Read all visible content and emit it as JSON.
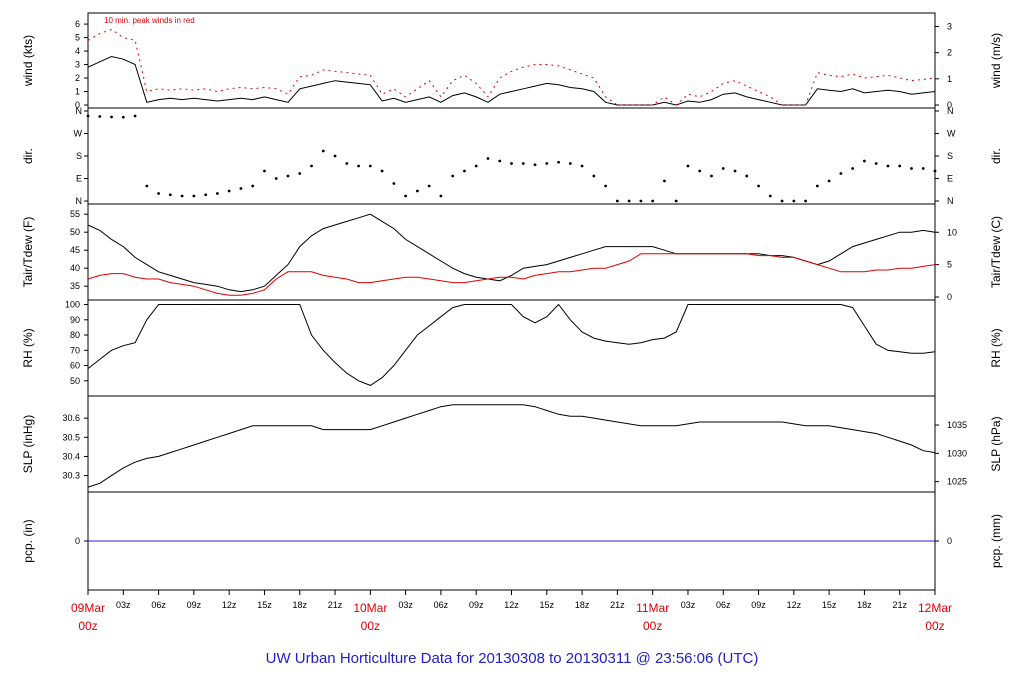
{
  "title": "UW Urban Horticulture Data for 20130308  to  20130311 @ 23:56:06  (UTC)",
  "colors": {
    "main": "#000000",
    "secondary": "#e00000",
    "precip": "#2020c8",
    "title": "#2020c8"
  },
  "chart_data": [
    {
      "type": "line",
      "name": "wind",
      "ylabel": "wind (kts)",
      "ylabel_right": "wind (m/s)",
      "ylim": [
        0,
        6.6
      ],
      "yticks": [
        "0",
        "1",
        "2",
        "3",
        "4",
        "5",
        "6"
      ],
      "right_ylim": [
        0,
        3.4
      ],
      "right_yticks": [
        "0",
        "1",
        "2",
        "3"
      ],
      "annotation": "10 min. peak winds in red",
      "x": [
        0,
        1,
        2,
        3,
        4,
        5,
        6,
        7,
        8,
        9,
        10,
        11,
        12,
        13,
        14,
        15,
        16,
        17,
        18,
        19,
        20,
        21,
        22,
        23,
        24,
        25,
        26,
        27,
        28,
        29,
        30,
        31,
        32,
        33,
        34,
        35,
        36,
        37,
        38,
        39,
        40,
        41,
        42,
        43,
        44,
        45,
        46,
        47,
        48,
        49,
        50,
        51,
        52,
        53,
        54,
        55,
        56,
        57,
        58,
        59,
        60,
        61,
        62,
        63,
        64,
        65,
        66,
        67,
        68,
        69,
        70,
        71,
        72
      ],
      "series": [
        {
          "values": [
            2.8,
            3.2,
            3.6,
            3.4,
            3.0,
            0.2,
            0.4,
            0.5,
            0.4,
            0.5,
            0.4,
            0.3,
            0.4,
            0.5,
            0.4,
            0.6,
            0.4,
            0.2,
            1.2,
            1.4,
            1.6,
            1.8,
            1.7,
            1.6,
            1.5,
            0.3,
            0.5,
            0.2,
            0.4,
            0.6,
            0.2,
            0.7,
            0.9,
            0.6,
            0.2,
            0.8,
            1.0,
            1.2,
            1.4,
            1.6,
            1.5,
            1.3,
            1.2,
            1.0,
            0.2,
            0,
            0,
            0,
            0,
            0.2,
            0,
            0.3,
            0.2,
            0.4,
            0.8,
            0.9,
            0.6,
            0.4,
            0.2,
            0,
            0,
            0,
            1.2,
            1.1,
            1.0,
            1.2,
            0.9,
            1.0,
            1.1,
            1.0,
            0.8,
            0.9,
            1.0
          ]
        },
        {
          "values": [
            4.8,
            5.3,
            5.6,
            5.0,
            4.8,
            1.0,
            1.2,
            1.1,
            1.2,
            1.1,
            1.2,
            1.0,
            1.2,
            1.3,
            1.2,
            1.3,
            1.2,
            0.8,
            2.1,
            2.2,
            2.6,
            2.5,
            2.4,
            2.3,
            2.2,
            0.8,
            1.2,
            0.6,
            1.2,
            1.8,
            0.6,
            1.8,
            2.2,
            1.6,
            0.6,
            2.0,
            2.5,
            2.8,
            3.0,
            3.0,
            2.9,
            2.6,
            2.3,
            2.0,
            0.6,
            0,
            0,
            0,
            0,
            0.6,
            0,
            0.8,
            0.6,
            1.0,
            1.6,
            1.8,
            1.4,
            1.0,
            0.6,
            0,
            0,
            0,
            2.4,
            2.2,
            2.1,
            2.3,
            2.0,
            2.1,
            2.2,
            2.0,
            1.8,
            1.9,
            2.0
          ]
        }
      ]
    },
    {
      "type": "scatter",
      "name": "dir",
      "ylabel": "dir.",
      "ylabel_right": "dir.",
      "ylim": [
        0,
        360
      ],
      "yticks": [
        "N",
        "E",
        "S",
        "W",
        "N"
      ],
      "x": [
        0,
        1,
        2,
        3,
        4,
        5,
        6,
        7,
        8,
        9,
        10,
        11,
        12,
        13,
        14,
        15,
        16,
        17,
        18,
        19,
        20,
        21,
        22,
        23,
        24,
        25,
        26,
        27,
        28,
        29,
        30,
        31,
        32,
        33,
        34,
        35,
        36,
        37,
        38,
        39,
        40,
        41,
        42,
        43,
        44,
        45,
        46,
        47,
        48,
        49,
        50,
        51,
        52,
        53,
        54,
        55,
        56,
        57,
        58,
        59,
        60,
        61,
        62,
        63,
        64,
        65,
        66,
        67,
        68,
        69,
        70,
        71,
        72
      ],
      "values": [
        340,
        338,
        336,
        335,
        340,
        60,
        30,
        25,
        20,
        20,
        25,
        30,
        40,
        50,
        60,
        120,
        90,
        100,
        110,
        140,
        200,
        180,
        150,
        140,
        140,
        120,
        70,
        20,
        40,
        60,
        20,
        100,
        120,
        140,
        170,
        160,
        150,
        150,
        145,
        150,
        155,
        150,
        140,
        100,
        60,
        0,
        0,
        0,
        0,
        80,
        0,
        140,
        120,
        100,
        130,
        120,
        100,
        60,
        20,
        0,
        0,
        0,
        60,
        80,
        110,
        130,
        160,
        150,
        140,
        140,
        130,
        130,
        120
      ]
    },
    {
      "type": "line",
      "name": "temperature",
      "ylabel": "Tair/Tdew (F)",
      "ylabel_right": "Tair/Tdew (C)",
      "ylim": [
        32,
        57
      ],
      "yticks": [
        "35",
        "40",
        "45",
        "50",
        "55"
      ],
      "right_ylim": [
        0,
        13.9
      ],
      "right_yticks": [
        "0",
        "5",
        "10"
      ],
      "x": [
        0,
        1,
        2,
        3,
        4,
        5,
        6,
        7,
        8,
        9,
        10,
        11,
        12,
        13,
        14,
        15,
        16,
        17,
        18,
        19,
        20,
        21,
        22,
        23,
        24,
        25,
        26,
        27,
        28,
        29,
        30,
        31,
        32,
        33,
        34,
        35,
        36,
        37,
        38,
        39,
        40,
        41,
        42,
        43,
        44,
        45,
        46,
        47,
        48,
        49,
        50,
        51,
        52,
        53,
        54,
        55,
        56,
        57,
        58,
        59,
        60,
        61,
        62,
        63,
        64,
        65,
        66,
        67,
        68,
        69,
        70,
        71,
        72
      ],
      "series": [
        {
          "values": [
            52,
            50.5,
            48,
            46,
            43,
            41,
            39,
            38,
            37,
            36,
            35.5,
            35,
            34,
            33.5,
            34,
            35,
            38,
            41,
            46,
            49,
            51,
            52,
            53,
            54,
            55,
            53,
            51,
            48,
            46,
            44,
            42,
            40,
            38.5,
            37.5,
            37,
            36.5,
            38,
            40,
            40.5,
            41,
            42,
            43,
            44,
            45,
            46,
            46,
            46,
            46,
            46,
            45,
            44,
            44,
            44,
            44,
            44,
            44,
            44,
            44,
            43.5,
            43.5,
            43,
            42,
            41,
            42,
            44,
            46,
            47,
            48,
            49,
            50,
            50,
            50.5,
            50
          ]
        },
        {
          "values": [
            37,
            38,
            38.5,
            38.5,
            37.5,
            37,
            37,
            36,
            35.5,
            35,
            34,
            33,
            32.5,
            32.5,
            33,
            34,
            37,
            39,
            39,
            39,
            38,
            37.5,
            37,
            36,
            36,
            36.5,
            37,
            37.5,
            37.5,
            37,
            36.5,
            36,
            36,
            36.5,
            37,
            37.5,
            37.5,
            37,
            38,
            38.5,
            39,
            39,
            39.5,
            40,
            40,
            41,
            42,
            44,
            44,
            44,
            44,
            44,
            44,
            44,
            44,
            44,
            44,
            43.5,
            43.5,
            43,
            43,
            42,
            41,
            40,
            39,
            39,
            39,
            39.5,
            39.5,
            40,
            40,
            40.5,
            41
          ]
        }
      ]
    },
    {
      "type": "line",
      "name": "rh",
      "ylabel": "RH (%)",
      "ylabel_right": "RH (%)",
      "ylim": [
        42,
        101
      ],
      "yticks": [
        "50",
        "60",
        "70",
        "80",
        "90",
        "100"
      ],
      "x": [
        0,
        1,
        2,
        3,
        4,
        5,
        6,
        7,
        8,
        9,
        10,
        11,
        12,
        13,
        14,
        15,
        16,
        17,
        18,
        19,
        20,
        21,
        22,
        23,
        24,
        25,
        26,
        27,
        28,
        29,
        30,
        31,
        32,
        33,
        34,
        35,
        36,
        37,
        38,
        39,
        40,
        41,
        42,
        43,
        44,
        45,
        46,
        47,
        48,
        49,
        50,
        51,
        52,
        53,
        54,
        55,
        56,
        57,
        58,
        59,
        60,
        61,
        62,
        63,
        64,
        65,
        66,
        67,
        68,
        69,
        70,
        71,
        72
      ],
      "values": [
        58,
        64,
        70,
        73,
        75,
        90,
        100,
        100,
        100,
        100,
        100,
        100,
        100,
        100,
        100,
        100,
        100,
        100,
        100,
        80,
        70,
        62,
        55,
        50,
        47,
        52,
        60,
        70,
        80,
        86,
        92,
        98,
        100,
        100,
        100,
        100,
        100,
        92,
        88,
        92,
        100,
        90,
        82,
        78,
        76,
        75,
        74,
        75,
        77,
        78,
        82,
        100,
        100,
        100,
        100,
        100,
        100,
        100,
        100,
        100,
        100,
        100,
        100,
        100,
        100,
        98,
        86,
        74,
        70,
        69,
        68,
        68,
        69
      ]
    },
    {
      "type": "line",
      "name": "slp",
      "ylabel": "SLP (inHg)",
      "ylabel_right": "SLP (hPa)",
      "ylim": [
        30.23,
        30.7
      ],
      "yticks": [
        "30.3",
        "30.4",
        "30.5",
        "30.6"
      ],
      "right_ylim": [
        1023.7,
        1039.6
      ],
      "right_yticks": [
        "1025",
        "1030",
        "1035"
      ],
      "x": [
        0,
        1,
        2,
        3,
        4,
        5,
        6,
        7,
        8,
        9,
        10,
        11,
        12,
        13,
        14,
        15,
        16,
        17,
        18,
        19,
        20,
        21,
        22,
        23,
        24,
        25,
        26,
        27,
        28,
        29,
        30,
        31,
        32,
        33,
        34,
        35,
        36,
        37,
        38,
        39,
        40,
        41,
        42,
        43,
        44,
        45,
        46,
        47,
        48,
        49,
        50,
        51,
        52,
        53,
        54,
        55,
        56,
        57,
        58,
        59,
        60,
        61,
        62,
        63,
        64,
        65,
        66,
        67,
        68,
        69,
        70,
        71,
        72
      ],
      "values": [
        30.24,
        30.26,
        30.3,
        30.34,
        30.37,
        30.39,
        30.4,
        30.42,
        30.44,
        30.46,
        30.48,
        30.5,
        30.52,
        30.54,
        30.56,
        30.56,
        30.56,
        30.56,
        30.56,
        30.56,
        30.54,
        30.54,
        30.54,
        30.54,
        30.54,
        30.56,
        30.58,
        30.6,
        30.62,
        30.64,
        30.66,
        30.67,
        30.67,
        30.67,
        30.67,
        30.67,
        30.67,
        30.67,
        30.66,
        30.64,
        30.62,
        30.61,
        30.61,
        30.6,
        30.59,
        30.58,
        30.57,
        30.56,
        30.56,
        30.56,
        30.56,
        30.57,
        30.58,
        30.58,
        30.58,
        30.58,
        30.58,
        30.58,
        30.58,
        30.58,
        30.57,
        30.56,
        30.56,
        30.56,
        30.55,
        30.54,
        30.53,
        30.52,
        30.5,
        30.48,
        30.46,
        30.43,
        30.42
      ]
    },
    {
      "type": "line",
      "name": "pcp",
      "ylabel": "pcp. (in)",
      "ylabel_right": "pcp. (mm)",
      "ylim": [
        -1,
        1
      ],
      "yticks": [
        "0"
      ],
      "right_yticks": [
        "0"
      ],
      "x": [
        0,
        72
      ],
      "values": [
        0,
        0
      ]
    }
  ],
  "xaxis": {
    "hour_ticks": [
      "03z",
      "06z",
      "09z",
      "12z",
      "15z",
      "18z",
      "21z",
      "",
      "03z",
      "06z",
      "09z",
      "12z",
      "15z",
      "18z",
      "21z",
      "",
      "03z",
      "06z",
      "09z",
      "12z",
      "15z",
      "18z",
      "21z"
    ],
    "day_labels": [
      {
        "date": "09Mar",
        "hour": "00z"
      },
      {
        "date": "10Mar",
        "hour": "00z"
      },
      {
        "date": "11Mar",
        "hour": "00z"
      },
      {
        "date": "12Mar",
        "hour": "00z"
      }
    ],
    "range_hours": [
      0,
      72
    ]
  }
}
